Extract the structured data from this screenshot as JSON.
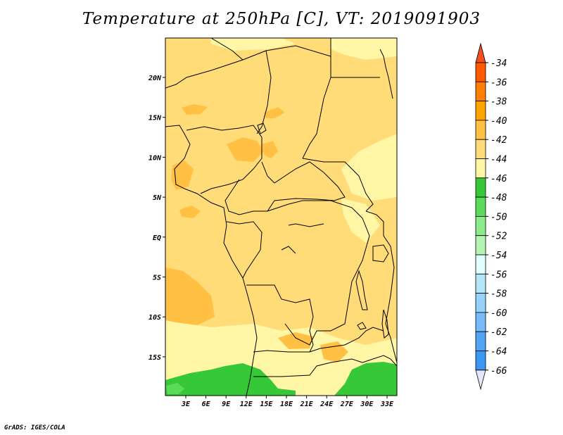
{
  "title": "Temperature at 250hPa [C], VT: 2019091903",
  "footer": "GrADS: IGES/COLA",
  "lat_labels": [
    "20N",
    "15N",
    "10N",
    "5N",
    "EQ",
    "5S",
    "10S",
    "15S"
  ],
  "lon_labels": [
    "3E",
    "6E",
    "9E",
    "12E",
    "15E",
    "18E",
    "21E",
    "24E",
    "27E",
    "30E",
    "33E"
  ],
  "colorbar": {
    "labels": [
      "-34",
      "-36",
      "-38",
      "-40",
      "-42",
      "-44",
      "-46",
      "-48",
      "-50",
      "-52",
      "-54",
      "-56",
      "-58",
      "-60",
      "-62",
      "-64",
      "-66"
    ],
    "colors": [
      "#ff5a00",
      "#ff7f00",
      "#ffa300",
      "#ffc043",
      "#ffdc78",
      "#fff6a6",
      "#37c837",
      "#5adb5a",
      "#8ceb8c",
      "#b4f5b4",
      "#e1ffff",
      "#b4e6fa",
      "#96d2fa",
      "#78b9fa",
      "#50a5f5",
      "#3c96f5",
      "#1e6ee6",
      "#1464d2",
      "#0a1e78"
    ],
    "top_color": "#f0501e",
    "bottom_color": "#e6e6fa"
  },
  "map": {
    "background": "#ffdc78",
    "lighter": "#fff6a6",
    "darker": "#ffc043",
    "green": "#37c837",
    "light_green": "#5adb5a"
  }
}
